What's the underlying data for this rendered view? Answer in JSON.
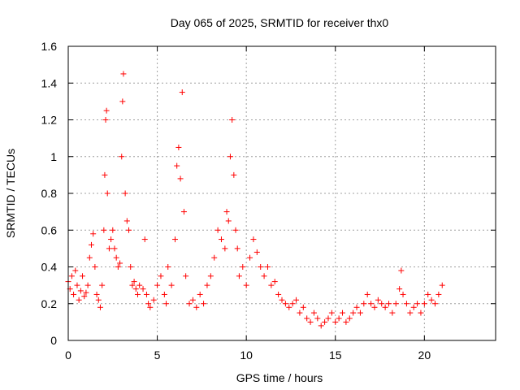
{
  "chart_data": {
    "type": "scatter",
    "title": "Day 065 of 2025, SRMTID for receiver thx0",
    "xlabel": "GPS time / hours",
    "ylabel": "SRMTID / TECUs",
    "xlim": [
      0,
      24
    ],
    "ylim": [
      0,
      1.6
    ],
    "x_ticks": [
      0,
      5,
      10,
      15,
      20
    ],
    "x_tick_labels": [
      "0",
      "5",
      "10",
      "15",
      "20"
    ],
    "y_ticks": [
      0,
      0.2,
      0.4,
      0.6,
      0.8,
      1.0,
      1.2,
      1.4,
      1.6
    ],
    "y_tick_labels": [
      "0",
      "0.2",
      "0.4",
      "0.6",
      "0.8",
      "1",
      "1.2",
      "1.4",
      "1.6"
    ],
    "grid": true,
    "marker": "plus",
    "series_color": "#ff0000",
    "series": [
      {
        "name": "SRMTID",
        "points": [
          [
            0.0,
            0.32
          ],
          [
            0.1,
            0.28
          ],
          [
            0.2,
            0.35
          ],
          [
            0.3,
            0.25
          ],
          [
            0.4,
            0.38
          ],
          [
            0.5,
            0.3
          ],
          [
            0.6,
            0.22
          ],
          [
            0.7,
            0.27
          ],
          [
            0.8,
            0.35
          ],
          [
            0.9,
            0.24
          ],
          [
            1.0,
            0.26
          ],
          [
            1.1,
            0.3
          ],
          [
            1.2,
            0.45
          ],
          [
            1.3,
            0.52
          ],
          [
            1.4,
            0.58
          ],
          [
            1.5,
            0.4
          ],
          [
            1.6,
            0.25
          ],
          [
            1.7,
            0.22
          ],
          [
            1.8,
            0.18
          ],
          [
            1.9,
            0.3
          ],
          [
            2.0,
            0.6
          ],
          [
            2.05,
            0.9
          ],
          [
            2.1,
            1.2
          ],
          [
            2.15,
            1.25
          ],
          [
            2.2,
            0.8
          ],
          [
            2.3,
            0.5
          ],
          [
            2.4,
            0.55
          ],
          [
            2.5,
            0.6
          ],
          [
            2.6,
            0.5
          ],
          [
            2.7,
            0.45
          ],
          [
            2.8,
            0.4
          ],
          [
            2.9,
            0.42
          ],
          [
            3.0,
            1.0
          ],
          [
            3.05,
            1.3
          ],
          [
            3.1,
            1.45
          ],
          [
            3.2,
            0.8
          ],
          [
            3.3,
            0.65
          ],
          [
            3.4,
            0.6
          ],
          [
            3.5,
            0.4
          ],
          [
            3.6,
            0.3
          ],
          [
            3.7,
            0.32
          ],
          [
            3.8,
            0.28
          ],
          [
            3.9,
            0.25
          ],
          [
            4.0,
            0.3
          ],
          [
            4.2,
            0.28
          ],
          [
            4.3,
            0.55
          ],
          [
            4.4,
            0.25
          ],
          [
            4.5,
            0.2
          ],
          [
            4.6,
            0.18
          ],
          [
            4.8,
            0.22
          ],
          [
            5.0,
            0.3
          ],
          [
            5.2,
            0.35
          ],
          [
            5.4,
            0.25
          ],
          [
            5.5,
            0.2
          ],
          [
            5.6,
            0.4
          ],
          [
            5.8,
            0.3
          ],
          [
            6.0,
            0.55
          ],
          [
            6.1,
            0.95
          ],
          [
            6.2,
            1.05
          ],
          [
            6.3,
            0.88
          ],
          [
            6.4,
            1.35
          ],
          [
            6.5,
            0.7
          ],
          [
            6.6,
            0.35
          ],
          [
            6.8,
            0.2
          ],
          [
            7.0,
            0.22
          ],
          [
            7.2,
            0.18
          ],
          [
            7.4,
            0.25
          ],
          [
            7.6,
            0.2
          ],
          [
            7.8,
            0.3
          ],
          [
            8.0,
            0.35
          ],
          [
            8.2,
            0.45
          ],
          [
            8.4,
            0.6
          ],
          [
            8.6,
            0.55
          ],
          [
            8.8,
            0.5
          ],
          [
            8.9,
            0.7
          ],
          [
            9.0,
            0.65
          ],
          [
            9.1,
            1.0
          ],
          [
            9.2,
            1.2
          ],
          [
            9.3,
            0.9
          ],
          [
            9.4,
            0.6
          ],
          [
            9.5,
            0.5
          ],
          [
            9.6,
            0.35
          ],
          [
            9.8,
            0.4
          ],
          [
            10.0,
            0.3
          ],
          [
            10.2,
            0.45
          ],
          [
            10.4,
            0.55
          ],
          [
            10.6,
            0.48
          ],
          [
            10.8,
            0.4
          ],
          [
            11.0,
            0.35
          ],
          [
            11.2,
            0.4
          ],
          [
            11.4,
            0.3
          ],
          [
            11.6,
            0.32
          ],
          [
            11.8,
            0.25
          ],
          [
            12.0,
            0.22
          ],
          [
            12.2,
            0.2
          ],
          [
            12.4,
            0.18
          ],
          [
            12.6,
            0.2
          ],
          [
            12.8,
            0.22
          ],
          [
            13.0,
            0.15
          ],
          [
            13.2,
            0.18
          ],
          [
            13.4,
            0.12
          ],
          [
            13.6,
            0.1
          ],
          [
            13.8,
            0.15
          ],
          [
            14.0,
            0.12
          ],
          [
            14.2,
            0.08
          ],
          [
            14.4,
            0.1
          ],
          [
            14.6,
            0.12
          ],
          [
            14.8,
            0.15
          ],
          [
            15.0,
            0.1
          ],
          [
            15.2,
            0.12
          ],
          [
            15.4,
            0.15
          ],
          [
            15.6,
            0.1
          ],
          [
            15.8,
            0.12
          ],
          [
            16.0,
            0.15
          ],
          [
            16.2,
            0.18
          ],
          [
            16.4,
            0.15
          ],
          [
            16.6,
            0.2
          ],
          [
            16.8,
            0.25
          ],
          [
            17.0,
            0.2
          ],
          [
            17.2,
            0.18
          ],
          [
            17.4,
            0.22
          ],
          [
            17.6,
            0.2
          ],
          [
            17.8,
            0.18
          ],
          [
            18.0,
            0.2
          ],
          [
            18.2,
            0.15
          ],
          [
            18.4,
            0.2
          ],
          [
            18.6,
            0.28
          ],
          [
            18.7,
            0.38
          ],
          [
            18.8,
            0.25
          ],
          [
            19.0,
            0.2
          ],
          [
            19.2,
            0.15
          ],
          [
            19.4,
            0.18
          ],
          [
            19.6,
            0.2
          ],
          [
            19.8,
            0.15
          ],
          [
            20.0,
            0.2
          ],
          [
            20.2,
            0.25
          ],
          [
            20.4,
            0.22
          ],
          [
            20.6,
            0.2
          ],
          [
            20.8,
            0.25
          ],
          [
            21.0,
            0.3
          ]
        ]
      }
    ]
  }
}
